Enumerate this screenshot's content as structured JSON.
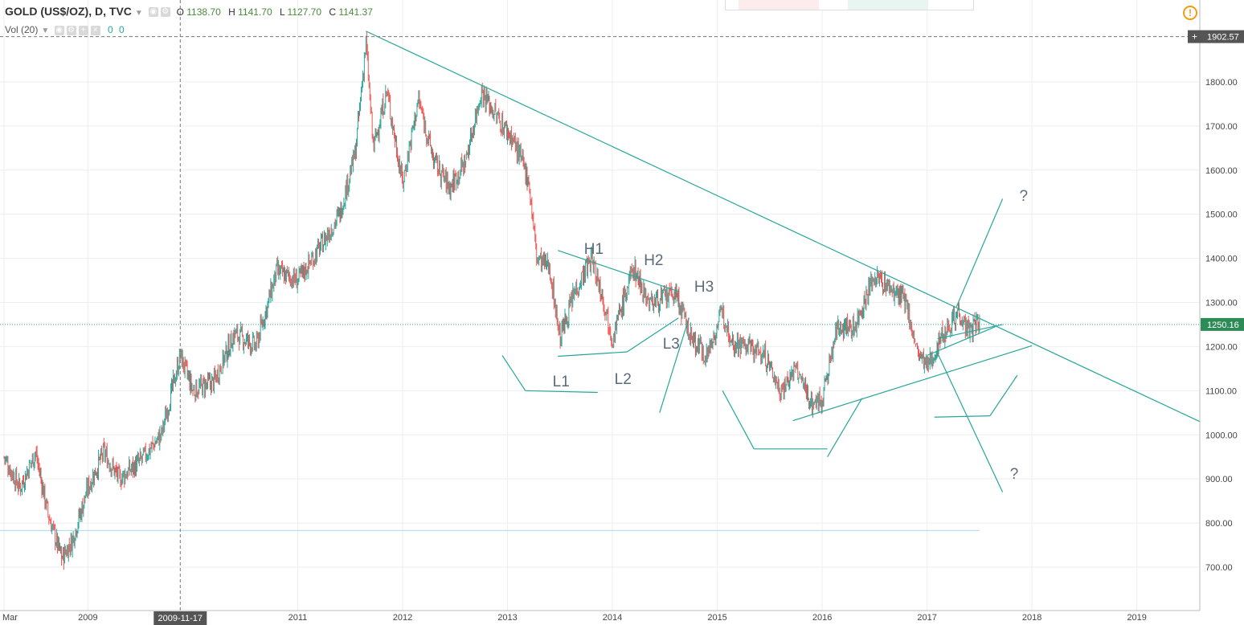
{
  "header": {
    "title": "GOLD (US$/OZ), D, TVC",
    "open_label": "O",
    "open": "1138.70",
    "high_label": "H",
    "high": "1141.70",
    "low_label": "L",
    "low": "1127.70",
    "close_label": "C",
    "close": "1141.37"
  },
  "volume": {
    "label": "Vol (20)",
    "v1": "0",
    "v2": "0"
  },
  "icons": {
    "alert": "alert-icon",
    "settings": "gear-icon",
    "eye": "eye-icon",
    "close": "close-icon"
  },
  "colors": {
    "up": "#26a69a",
    "down": "#ef5350",
    "trend": "#26a69a",
    "annotation_text": "#5b6b7b",
    "price_tag": "#2e8b57",
    "crosshair_tag": "#555555"
  },
  "chart_data": {
    "type": "candlestick",
    "symbol": "GOLD (US$/OZ)",
    "interval": "D",
    "source": "TVC",
    "ylim": [
      630,
      1930
    ],
    "xlim": [
      2008.2,
      2019.6
    ],
    "y_ticks": [
      "700.00",
      "800.00",
      "900.00",
      "1000.00",
      "1100.00",
      "1200.00",
      "1300.00",
      "1400.00",
      "1500.00",
      "1600.00",
      "1700.00",
      "1800.00"
    ],
    "y_tick_values": [
      700,
      800,
      900,
      1000,
      1100,
      1200,
      1300,
      1400,
      1500,
      1600,
      1700,
      1800
    ],
    "x_ticks": [
      "Mar",
      "2009",
      "2011",
      "2012",
      "2013",
      "2014",
      "2015",
      "2016",
      "2017",
      "2018",
      "2019"
    ],
    "x_tick_values": [
      2008.2,
      2009.0,
      2011.0,
      2012.0,
      2013.0,
      2014.0,
      2015.0,
      2016.0,
      2017.0,
      2018.0,
      2019.0
    ],
    "current_price": "1250.16",
    "current_price_value": 1250.16,
    "crosshair_price": "1902.57",
    "crosshair_price_value": 1902.57,
    "crosshair_date": "2009-11-17",
    "crosshair_date_value": 2009.88,
    "horizontal_line_value": 783,
    "price_path": [
      [
        2008.2,
        950
      ],
      [
        2008.35,
        880
      ],
      [
        2008.5,
        960
      ],
      [
        2008.62,
        820
      ],
      [
        2008.75,
        720
      ],
      [
        2008.85,
        760
      ],
      [
        2009.0,
        880
      ],
      [
        2009.15,
        960
      ],
      [
        2009.3,
        900
      ],
      [
        2009.5,
        940
      ],
      [
        2009.7,
        1000
      ],
      [
        2009.88,
        1180
      ],
      [
        2010.0,
        1100
      ],
      [
        2010.2,
        1120
      ],
      [
        2010.4,
        1230
      ],
      [
        2010.6,
        1200
      ],
      [
        2010.8,
        1370
      ],
      [
        2011.0,
        1350
      ],
      [
        2011.2,
        1420
      ],
      [
        2011.4,
        1500
      ],
      [
        2011.55,
        1640
      ],
      [
        2011.65,
        1890
      ],
      [
        2011.72,
        1650
      ],
      [
        2011.85,
        1780
      ],
      [
        2012.0,
        1570
      ],
      [
        2012.15,
        1760
      ],
      [
        2012.3,
        1620
      ],
      [
        2012.45,
        1560
      ],
      [
        2012.6,
        1620
      ],
      [
        2012.75,
        1780
      ],
      [
        2012.9,
        1720
      ],
      [
        2013.05,
        1670
      ],
      [
        2013.2,
        1580
      ],
      [
        2013.28,
        1400
      ],
      [
        2013.4,
        1380
      ],
      [
        2013.5,
        1220
      ],
      [
        2013.65,
        1330
      ],
      [
        2013.8,
        1400
      ],
      [
        2013.9,
        1320
      ],
      [
        2014.0,
        1220
      ],
      [
        2014.1,
        1300
      ],
      [
        2014.2,
        1380
      ],
      [
        2014.35,
        1300
      ],
      [
        2014.5,
        1310
      ],
      [
        2014.6,
        1320
      ],
      [
        2014.75,
        1220
      ],
      [
        2014.9,
        1180
      ],
      [
        2015.05,
        1280
      ],
      [
        2015.15,
        1210
      ],
      [
        2015.3,
        1200
      ],
      [
        2015.45,
        1180
      ],
      [
        2015.6,
        1100
      ],
      [
        2015.75,
        1150
      ],
      [
        2015.9,
        1070
      ],
      [
        2016.0,
        1080
      ],
      [
        2016.15,
        1250
      ],
      [
        2016.3,
        1240
      ],
      [
        2016.5,
        1360
      ],
      [
        2016.65,
        1330
      ],
      [
        2016.8,
        1300
      ],
      [
        2016.9,
        1190
      ],
      [
        2017.0,
        1150
      ],
      [
        2017.15,
        1230
      ],
      [
        2017.3,
        1280
      ],
      [
        2017.4,
        1230
      ],
      [
        2017.5,
        1260
      ]
    ],
    "trendlines": [
      {
        "from": [
          2011.65,
          1915
        ],
        "to": [
          2019.6,
          1030
        ]
      },
      {
        "from": [
          2013.48,
          1418
        ],
        "to": [
          2014.63,
          1325
        ]
      },
      {
        "from": [
          2013.48,
          1178
        ],
        "to": [
          2014.14,
          1188
        ]
      },
      {
        "from": [
          2014.14,
          1188
        ],
        "to": [
          2014.63,
          1265
        ]
      },
      {
        "from": [
          2012.95,
          1180
        ],
        "to": [
          2013.17,
          1100
        ]
      },
      {
        "from": [
          2013.17,
          1100
        ],
        "to": [
          2013.86,
          1096
        ]
      },
      {
        "from": [
          2014.45,
          1050
        ],
        "to": [
          2014.73,
          1265
        ]
      },
      {
        "from": [
          2015.05,
          1100
        ],
        "to": [
          2015.35,
          968
        ]
      },
      {
        "from": [
          2015.35,
          968
        ],
        "to": [
          2016.05,
          968
        ]
      },
      {
        "from": [
          2016.05,
          950
        ],
        "to": [
          2016.38,
          1083
        ]
      },
      {
        "from": [
          2015.72,
          1032
        ],
        "to": [
          2018.0,
          1202
        ]
      },
      {
        "from": [
          2017.0,
          1180
        ],
        "to": [
          2017.65,
          1245
        ]
      },
      {
        "from": [
          2017.1,
          1218
        ],
        "to": [
          2017.72,
          1250
        ]
      },
      {
        "from": [
          2017.28,
          1290
        ],
        "to": [
          2017.72,
          1535
        ]
      },
      {
        "from": [
          2017.1,
          1185
        ],
        "to": [
          2017.72,
          870
        ]
      },
      {
        "from": [
          2017.07,
          1040
        ],
        "to": [
          2017.6,
          1043
        ]
      },
      {
        "from": [
          2017.6,
          1043
        ],
        "to": [
          2017.86,
          1135
        ]
      }
    ],
    "annotations": [
      {
        "text": "H1",
        "x": 2013.73,
        "y": 1410
      },
      {
        "text": "H2",
        "x": 2014.3,
        "y": 1385
      },
      {
        "text": "H3",
        "x": 2014.78,
        "y": 1325
      },
      {
        "text": "L1",
        "x": 2013.43,
        "y": 1110
      },
      {
        "text": "L2",
        "x": 2014.02,
        "y": 1115
      },
      {
        "text": "L3",
        "x": 2014.48,
        "y": 1195
      },
      {
        "text": "?",
        "x": 2017.88,
        "y": 1530
      },
      {
        "text": "?",
        "x": 2017.79,
        "y": 900
      }
    ]
  }
}
